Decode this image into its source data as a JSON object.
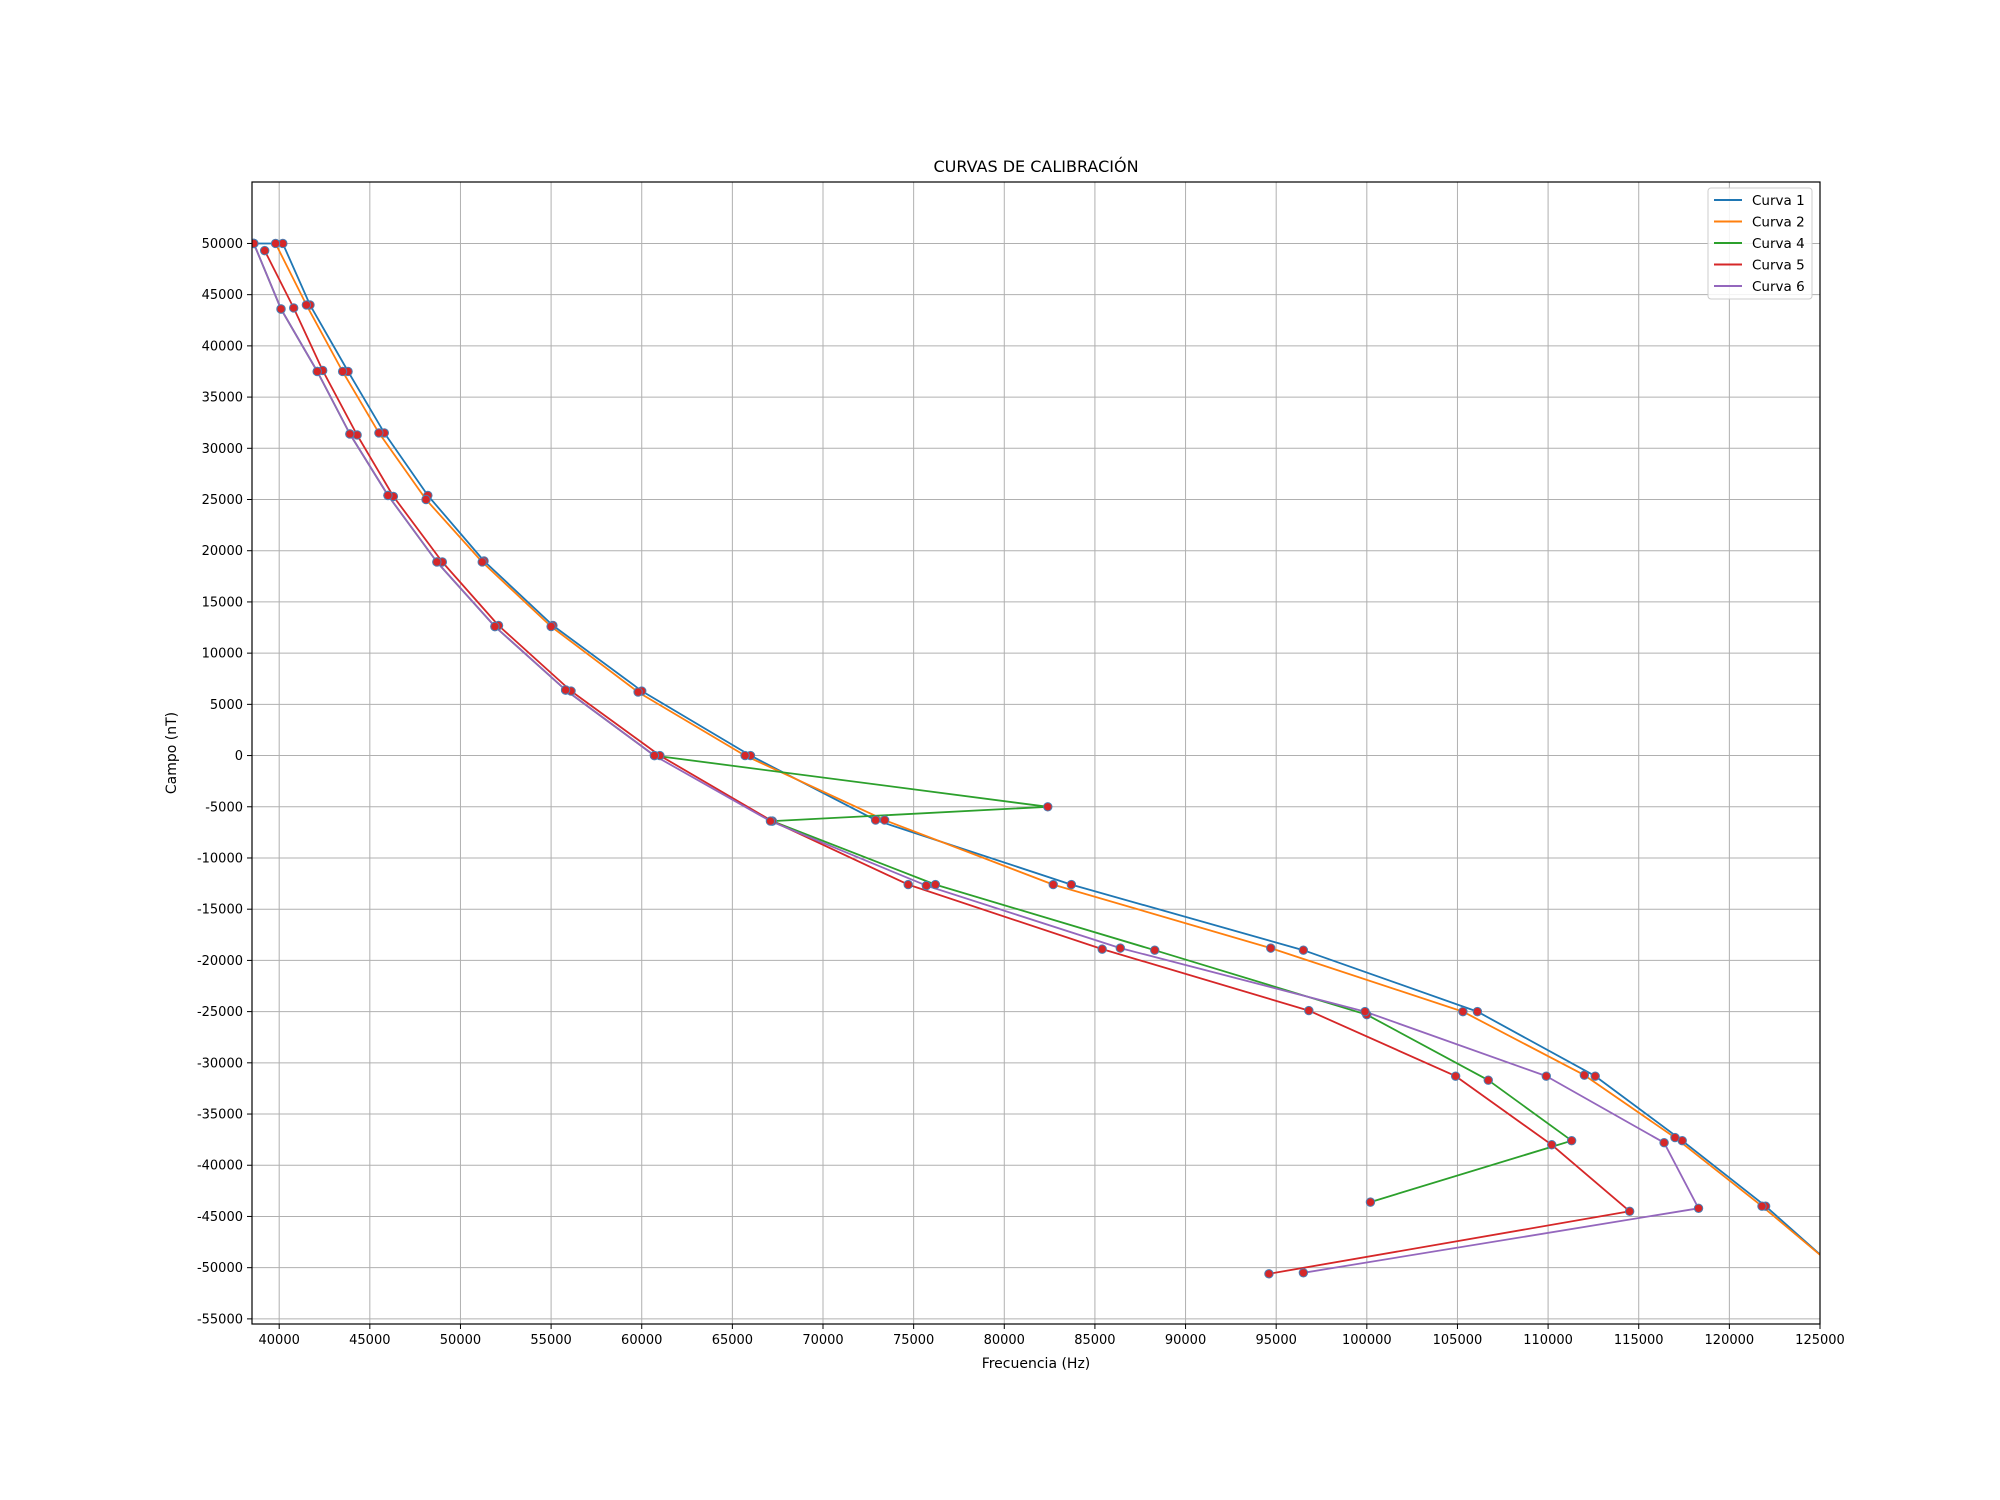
{
  "chart_data": {
    "type": "line",
    "title": "CURVAS DE CALIBRACIÓN",
    "xlabel": "Frecuencia (Hz)",
    "ylabel": "Campo (nT)",
    "xlim": [
      38500,
      125000
    ],
    "ylim": [
      -55500,
      56000
    ],
    "xticks": [
      40000,
      45000,
      50000,
      55000,
      60000,
      65000,
      70000,
      75000,
      80000,
      85000,
      90000,
      95000,
      100000,
      105000,
      110000,
      115000,
      120000,
      125000
    ],
    "yticks": [
      50000,
      45000,
      40000,
      35000,
      30000,
      25000,
      20000,
      15000,
      10000,
      5000,
      0,
      -5000,
      -10000,
      -15000,
      -20000,
      -25000,
      -30000,
      -35000,
      -40000,
      -45000,
      -50000,
      -55000
    ],
    "grid": true,
    "legend_position": "upper right",
    "marker_color": "#d62728",
    "series": [
      {
        "name": "Curva 1",
        "color": "#1f77b4",
        "points": [
          [
            38600,
            50000
          ],
          [
            40200,
            50000
          ],
          [
            41700,
            44000
          ],
          [
            43800,
            37500
          ],
          [
            45800,
            31500
          ],
          [
            48200,
            25400
          ],
          [
            51300,
            19000
          ],
          [
            55100,
            12700
          ],
          [
            60000,
            6300
          ],
          [
            66000,
            0
          ],
          [
            72900,
            -6300
          ],
          [
            83700,
            -12600
          ],
          [
            96500,
            -19000
          ],
          [
            106100,
            -25000
          ],
          [
            112600,
            -31300
          ],
          [
            117400,
            -37600
          ],
          [
            122000,
            -44000
          ],
          [
            125500,
            -49500
          ]
        ]
      },
      {
        "name": "Curva 2",
        "color": "#ff7f0e",
        "points": [
          [
            39800,
            50000
          ],
          [
            41500,
            44000
          ],
          [
            43500,
            37500
          ],
          [
            45500,
            31500
          ],
          [
            48100,
            25000
          ],
          [
            51200,
            18900
          ],
          [
            55000,
            12600
          ],
          [
            59800,
            6200
          ],
          [
            65700,
            0
          ],
          [
            73400,
            -6300
          ],
          [
            82700,
            -12600
          ],
          [
            94700,
            -18800
          ],
          [
            105300,
            -25000
          ],
          [
            112000,
            -31200
          ],
          [
            117000,
            -37300
          ],
          [
            121800,
            -44000
          ],
          [
            125500,
            -49500
          ]
        ]
      },
      {
        "name": "Curva 4",
        "color": "#2ca02c",
        "points": [
          [
            38600,
            50000
          ],
          [
            40100,
            43600
          ],
          [
            42100,
            37500
          ],
          [
            43900,
            31400
          ],
          [
            46000,
            25400
          ],
          [
            48700,
            18900
          ],
          [
            51900,
            12600
          ],
          [
            55800,
            6400
          ],
          [
            60700,
            0
          ],
          [
            82400,
            -5000
          ],
          [
            67200,
            -6400
          ],
          [
            76200,
            -12600
          ],
          [
            88300,
            -19000
          ],
          [
            100000,
            -25300
          ],
          [
            106700,
            -31700
          ],
          [
            111300,
            -37600
          ],
          [
            100200,
            -43600
          ]
        ]
      },
      {
        "name": "Curva 5",
        "color": "#d62728",
        "points": [
          [
            39200,
            49300
          ],
          [
            40800,
            43700
          ],
          [
            42400,
            37600
          ],
          [
            44300,
            31300
          ],
          [
            46300,
            25300
          ],
          [
            49000,
            18900
          ],
          [
            52100,
            12700
          ],
          [
            56100,
            6300
          ],
          [
            61000,
            0
          ],
          [
            67200,
            -6400
          ],
          [
            74700,
            -12600
          ],
          [
            85400,
            -18900
          ],
          [
            96800,
            -24900
          ],
          [
            104900,
            -31300
          ],
          [
            110200,
            -38000
          ],
          [
            114500,
            -44500
          ],
          [
            94600,
            -50600
          ]
        ]
      },
      {
        "name": "Curva 6",
        "color": "#9467bd",
        "points": [
          [
            38600,
            50000
          ],
          [
            40100,
            43600
          ],
          [
            42100,
            37500
          ],
          [
            43900,
            31400
          ],
          [
            46000,
            25400
          ],
          [
            48700,
            18900
          ],
          [
            51900,
            12600
          ],
          [
            55800,
            6400
          ],
          [
            60700,
            0
          ],
          [
            67100,
            -6400
          ],
          [
            75700,
            -12700
          ],
          [
            86400,
            -18800
          ],
          [
            99900,
            -25000
          ],
          [
            109900,
            -31300
          ],
          [
            116400,
            -37800
          ],
          [
            118300,
            -44200
          ],
          [
            96500,
            -50500
          ]
        ]
      }
    ]
  }
}
